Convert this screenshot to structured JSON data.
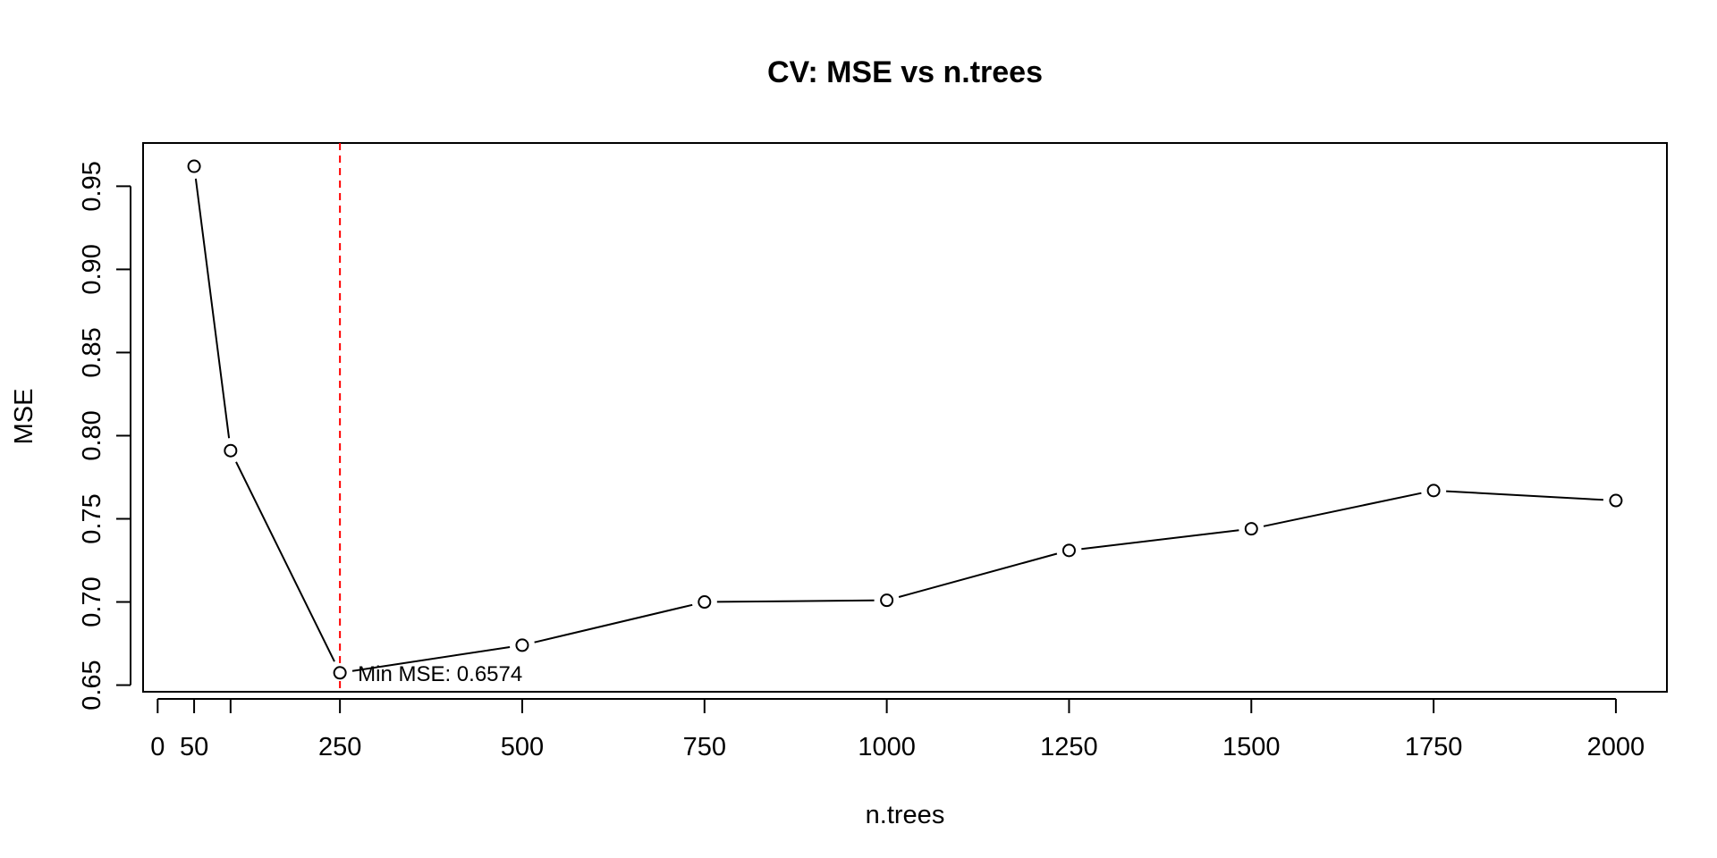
{
  "chart_data": {
    "type": "line",
    "title": "CV: MSE vs n.trees",
    "xlabel": "n.trees",
    "ylabel": "MSE",
    "x": [
      50,
      100,
      250,
      500,
      750,
      1000,
      1250,
      1500,
      1750,
      2000
    ],
    "y": [
      0.962,
      0.791,
      0.6574,
      0.674,
      0.7,
      0.701,
      0.731,
      0.744,
      0.767,
      0.761
    ],
    "xlim": [
      -20,
      2070
    ],
    "ylim": [
      0.646,
      0.976
    ],
    "x_ticks": [
      0,
      50,
      100,
      250,
      500,
      750,
      1000,
      1250,
      1500,
      1750,
      2000
    ],
    "x_tick_labels": [
      "0",
      "50",
      "",
      "250",
      "500",
      "750",
      "1000",
      "1250",
      "1500",
      "1750",
      "2000"
    ],
    "y_ticks": [
      0.65,
      0.7,
      0.75,
      0.8,
      0.85,
      0.9,
      0.95
    ],
    "y_tick_labels": [
      "0.65",
      "0.70",
      "0.75",
      "0.80",
      "0.85",
      "0.90",
      "0.95"
    ],
    "vline": {
      "x": 250,
      "color": "#ff0000",
      "style": "dashed"
    },
    "annotation": {
      "text": "Min MSE: 0.6574",
      "x": 250,
      "y": 0.6574
    },
    "grid": false,
    "legend": "none",
    "line_color": "#000000",
    "point_style": "open-circle"
  }
}
